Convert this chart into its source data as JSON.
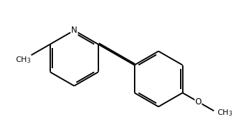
{
  "bg_color": "#ffffff",
  "bond_color": "#000000",
  "bond_width": 1.4,
  "font_size": 8.5,
  "figsize": [
    3.54,
    1.94
  ],
  "dpi": 100,
  "bl": 1.0
}
